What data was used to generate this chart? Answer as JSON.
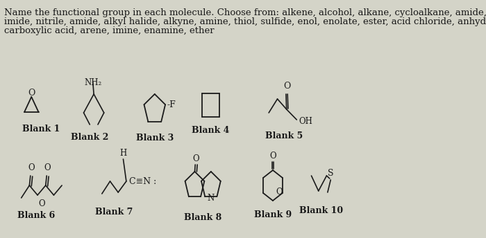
{
  "background_color": "#d4d4c8",
  "title_lines": [
    "Name the functional group in each molecule. Choose from: alkene, alcohol, alkane, cycloalkane, amide,",
    "imide, nitrile, amide, alkyl halide, alkyne, amine, thiol, sulfide, enol, enolate, ester, acid chloride, anhydride,",
    "carboxylic acid, arene, imine, enamine, ether"
  ],
  "blank_labels": [
    "Blank 1",
    "Blank 2",
    "Blank 3",
    "Blank 4",
    "Blank 5",
    "Blank 6",
    "Blank 7",
    "Blank 8",
    "Blank 9",
    "Blank 10"
  ],
  "text_color": "#1a1a1a",
  "font_size_text": 9.5,
  "font_size_label": 9.0
}
